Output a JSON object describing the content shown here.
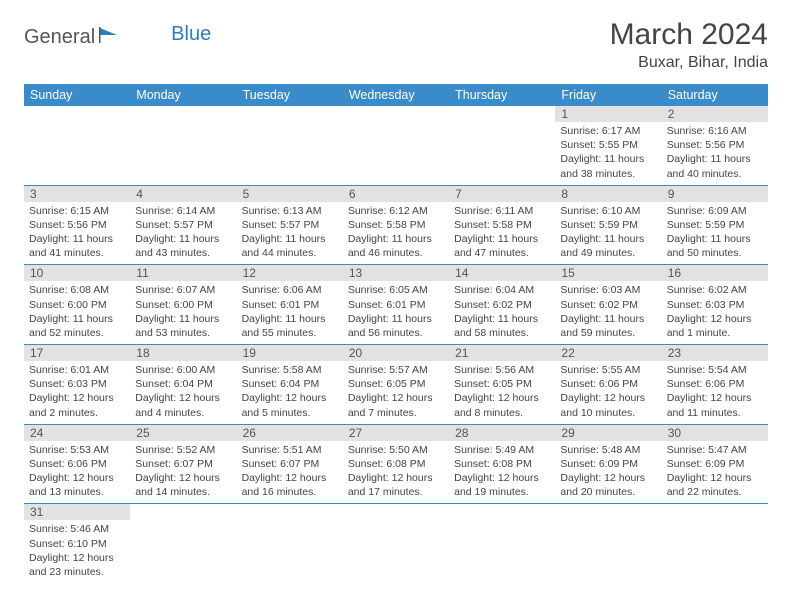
{
  "logo": {
    "text1": "General",
    "text2": "Blue"
  },
  "title": "March 2024",
  "location": "Buxar, Bihar, India",
  "weekdays": [
    "Sunday",
    "Monday",
    "Tuesday",
    "Wednesday",
    "Thursday",
    "Friday",
    "Saturday"
  ],
  "colors": {
    "header_bg": "#3a8bc9",
    "header_text": "#ffffff",
    "daynum_bg": "#e2e2e2",
    "border": "#3a8bc9",
    "text": "#444444",
    "logo_blue": "#2b7fbf"
  },
  "font": {
    "family": "Arial",
    "title_size": 30,
    "header_size": 12.5,
    "cell_size": 10.5
  },
  "weeks": [
    [
      null,
      null,
      null,
      null,
      null,
      {
        "n": "1",
        "sr": "6:17 AM",
        "ss": "5:55 PM",
        "dl": "11 hours and 38 minutes."
      },
      {
        "n": "2",
        "sr": "6:16 AM",
        "ss": "5:56 PM",
        "dl": "11 hours and 40 minutes."
      }
    ],
    [
      {
        "n": "3",
        "sr": "6:15 AM",
        "ss": "5:56 PM",
        "dl": "11 hours and 41 minutes."
      },
      {
        "n": "4",
        "sr": "6:14 AM",
        "ss": "5:57 PM",
        "dl": "11 hours and 43 minutes."
      },
      {
        "n": "5",
        "sr": "6:13 AM",
        "ss": "5:57 PM",
        "dl": "11 hours and 44 minutes."
      },
      {
        "n": "6",
        "sr": "6:12 AM",
        "ss": "5:58 PM",
        "dl": "11 hours and 46 minutes."
      },
      {
        "n": "7",
        "sr": "6:11 AM",
        "ss": "5:58 PM",
        "dl": "11 hours and 47 minutes."
      },
      {
        "n": "8",
        "sr": "6:10 AM",
        "ss": "5:59 PM",
        "dl": "11 hours and 49 minutes."
      },
      {
        "n": "9",
        "sr": "6:09 AM",
        "ss": "5:59 PM",
        "dl": "11 hours and 50 minutes."
      }
    ],
    [
      {
        "n": "10",
        "sr": "6:08 AM",
        "ss": "6:00 PM",
        "dl": "11 hours and 52 minutes."
      },
      {
        "n": "11",
        "sr": "6:07 AM",
        "ss": "6:00 PM",
        "dl": "11 hours and 53 minutes."
      },
      {
        "n": "12",
        "sr": "6:06 AM",
        "ss": "6:01 PM",
        "dl": "11 hours and 55 minutes."
      },
      {
        "n": "13",
        "sr": "6:05 AM",
        "ss": "6:01 PM",
        "dl": "11 hours and 56 minutes."
      },
      {
        "n": "14",
        "sr": "6:04 AM",
        "ss": "6:02 PM",
        "dl": "11 hours and 58 minutes."
      },
      {
        "n": "15",
        "sr": "6:03 AM",
        "ss": "6:02 PM",
        "dl": "11 hours and 59 minutes."
      },
      {
        "n": "16",
        "sr": "6:02 AM",
        "ss": "6:03 PM",
        "dl": "12 hours and 1 minute."
      }
    ],
    [
      {
        "n": "17",
        "sr": "6:01 AM",
        "ss": "6:03 PM",
        "dl": "12 hours and 2 minutes."
      },
      {
        "n": "18",
        "sr": "6:00 AM",
        "ss": "6:04 PM",
        "dl": "12 hours and 4 minutes."
      },
      {
        "n": "19",
        "sr": "5:58 AM",
        "ss": "6:04 PM",
        "dl": "12 hours and 5 minutes."
      },
      {
        "n": "20",
        "sr": "5:57 AM",
        "ss": "6:05 PM",
        "dl": "12 hours and 7 minutes."
      },
      {
        "n": "21",
        "sr": "5:56 AM",
        "ss": "6:05 PM",
        "dl": "12 hours and 8 minutes."
      },
      {
        "n": "22",
        "sr": "5:55 AM",
        "ss": "6:06 PM",
        "dl": "12 hours and 10 minutes."
      },
      {
        "n": "23",
        "sr": "5:54 AM",
        "ss": "6:06 PM",
        "dl": "12 hours and 11 minutes."
      }
    ],
    [
      {
        "n": "24",
        "sr": "5:53 AM",
        "ss": "6:06 PM",
        "dl": "12 hours and 13 minutes."
      },
      {
        "n": "25",
        "sr": "5:52 AM",
        "ss": "6:07 PM",
        "dl": "12 hours and 14 minutes."
      },
      {
        "n": "26",
        "sr": "5:51 AM",
        "ss": "6:07 PM",
        "dl": "12 hours and 16 minutes."
      },
      {
        "n": "27",
        "sr": "5:50 AM",
        "ss": "6:08 PM",
        "dl": "12 hours and 17 minutes."
      },
      {
        "n": "28",
        "sr": "5:49 AM",
        "ss": "6:08 PM",
        "dl": "12 hours and 19 minutes."
      },
      {
        "n": "29",
        "sr": "5:48 AM",
        "ss": "6:09 PM",
        "dl": "12 hours and 20 minutes."
      },
      {
        "n": "30",
        "sr": "5:47 AM",
        "ss": "6:09 PM",
        "dl": "12 hours and 22 minutes."
      }
    ],
    [
      {
        "n": "31",
        "sr": "5:46 AM",
        "ss": "6:10 PM",
        "dl": "12 hours and 23 minutes."
      },
      null,
      null,
      null,
      null,
      null,
      null
    ]
  ],
  "labels": {
    "sunrise": "Sunrise: ",
    "sunset": "Sunset: ",
    "daylight": "Daylight: "
  }
}
